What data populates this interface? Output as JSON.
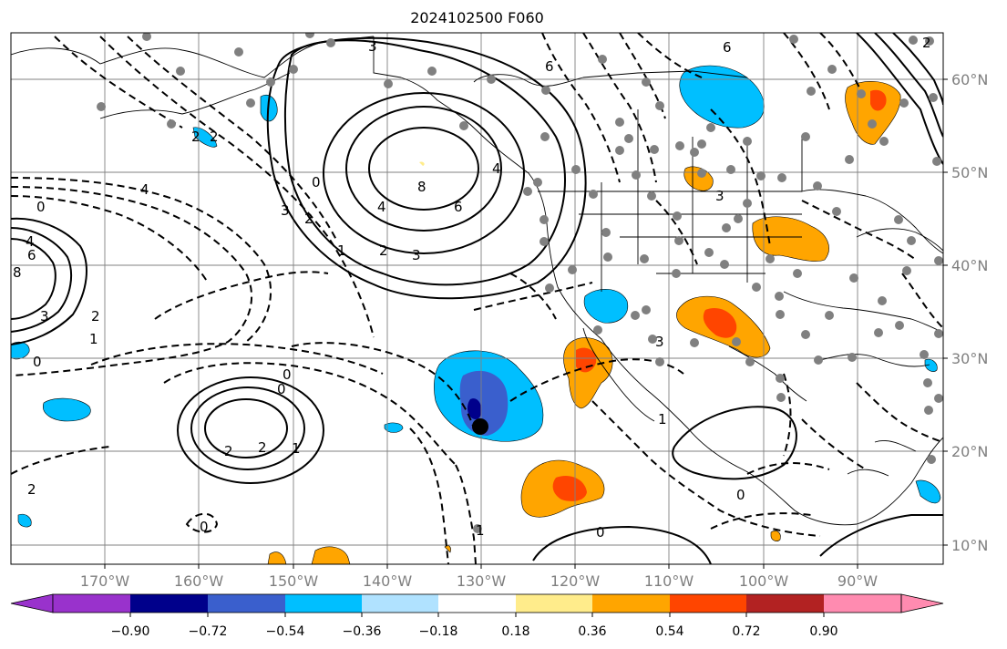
{
  "title": "2024102500 F060",
  "longitude_ticks": [
    "170°W",
    "160°W",
    "150°W",
    "140°W",
    "130°W",
    "120°W",
    "110°W",
    "100°W",
    "90°W"
  ],
  "latitude_ticks": [
    "60°N",
    "50°N",
    "40°N",
    "30°N",
    "20°N",
    "10°N"
  ],
  "colorbar": {
    "tick_labels": [
      "−0.90",
      "−0.72",
      "−0.54",
      "−0.36",
      "−0.18",
      "0.18",
      "0.36",
      "0.54",
      "0.72",
      "0.90"
    ],
    "colors": [
      "#9932CC",
      "#00008B",
      "#3A5FCD",
      "#00BFFF",
      "#B0E2FF",
      "#FFFFFF",
      "#FFEC8B",
      "#FFA500",
      "#FF4500",
      "#B22222",
      "#FF8BB0"
    ]
  },
  "contour_labels": [
    "4",
    "3",
    "6",
    "6",
    "3",
    "2",
    "0",
    "2",
    "8",
    "6",
    "4",
    "3",
    "3",
    "2",
    "1",
    "0",
    "3",
    "2",
    "4",
    "8",
    "6",
    "4",
    "3",
    "2",
    "2",
    "1",
    "0",
    "2",
    "1",
    "0",
    "1",
    "0",
    "0",
    "1",
    "0",
    "0",
    "2",
    "2"
  ],
  "colors": {
    "gridline": "#808080",
    "coast": "#000000",
    "contour": "#000000",
    "marker": "#808080",
    "center_marker": "#000000"
  }
}
